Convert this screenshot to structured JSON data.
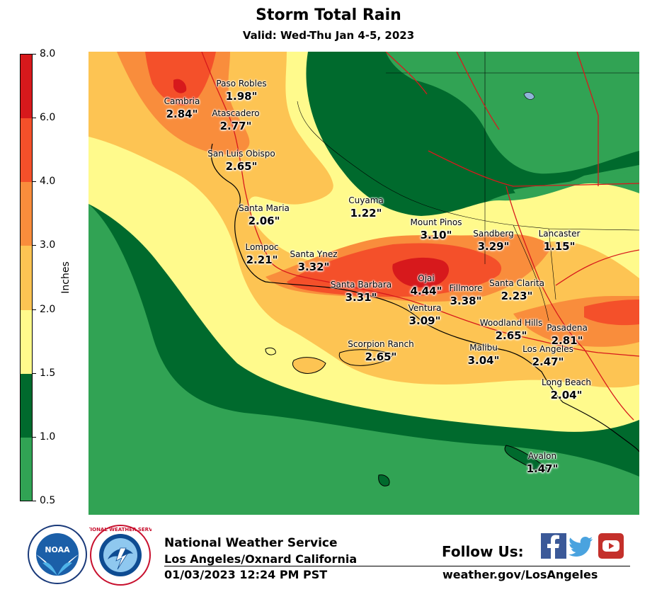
{
  "header": {
    "title": "Storm Total Rain",
    "subtitle": "Valid: Wed-Thu Jan 4-5, 2023"
  },
  "legend": {
    "title": "Inches",
    "ticks": [
      "8.0",
      "6.0",
      "4.0",
      "3.0",
      "2.0",
      "1.5",
      "1.0",
      "0.5"
    ],
    "colors": [
      "#d7191c",
      "#f4502a",
      "#f98d3c",
      "#fdc453",
      "#fffa8c",
      "#006a2d",
      "#31a354"
    ]
  },
  "map_colors": {
    "ocean_low": "#31a354",
    "dark_green": "#006a2d",
    "yellow": "#fffa8c",
    "light_orange": "#fdc453",
    "orange": "#f98d3c",
    "red_orange": "#f4502a",
    "red": "#d7191c",
    "highway": "#d7191c",
    "border": "#000000"
  },
  "places": [
    {
      "name": "Paso Robles",
      "value": "1.98\""
    },
    {
      "name": "Cambria",
      "value": "2.84\""
    },
    {
      "name": "Atascadero",
      "value": "2.77\""
    },
    {
      "name": "San Luis Obispo",
      "value": "2.65\""
    },
    {
      "name": "Cuyama",
      "value": "1.22\""
    },
    {
      "name": "Santa Maria",
      "value": "2.06\""
    },
    {
      "name": "Mount Pinos",
      "value": "3.10\""
    },
    {
      "name": "Sandberg",
      "value": "3.29\""
    },
    {
      "name": "Lancaster",
      "value": "1.15\""
    },
    {
      "name": "Lompoc",
      "value": "2.21\""
    },
    {
      "name": "Santa Ynez",
      "value": "3.32\""
    },
    {
      "name": "Ojai",
      "value": "4.44\""
    },
    {
      "name": "Santa Barbara",
      "value": "3.31\""
    },
    {
      "name": "Fillmore",
      "value": "3.38\""
    },
    {
      "name": "Santa Clarita",
      "value": "2.23\""
    },
    {
      "name": "Ventura",
      "value": "3.09\""
    },
    {
      "name": "Woodland Hills",
      "value": "2.65\""
    },
    {
      "name": "Pasadena",
      "value": "2.81\""
    },
    {
      "name": "Scorpion Ranch",
      "value": "2.65\""
    },
    {
      "name": "Malibu",
      "value": "3.04\""
    },
    {
      "name": "Los Angeles",
      "value": "2.47\""
    },
    {
      "name": "Long Beach",
      "value": "2.04\""
    },
    {
      "name": "Avalon",
      "value": "1.47\""
    }
  ],
  "footer": {
    "agency": "National Weather Service",
    "office": "Los Angeles/Oxnard California",
    "issued": "01/03/2023 12:24 PM PST",
    "follow_label": "Follow Us:",
    "website": "weather.gov/LosAngeles",
    "noaa_logo_text": "NOAA",
    "nws_logo_text": "NATIONAL WEATHER SERVICE",
    "social": [
      "facebook-icon",
      "twitter-icon",
      "youtube-icon"
    ]
  }
}
